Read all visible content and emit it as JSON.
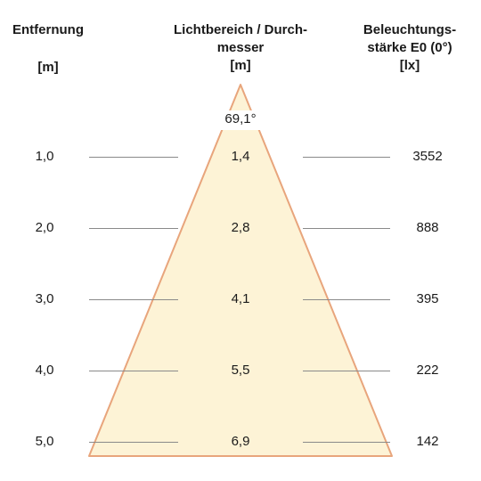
{
  "header": {
    "distance": {
      "title": "Entfernung",
      "unit": "[m]"
    },
    "diameter": {
      "title_line1": "Lichtbereich / Durch-",
      "title_line2": "messer",
      "unit": "[m]"
    },
    "illuminance": {
      "title_line1": "Beleuchtungs-",
      "title_line2": "stärke E0 (0°)",
      "unit": "[lx]"
    }
  },
  "beam_angle": "69,1°",
  "rows": [
    {
      "distance": "1,0",
      "diameter": "1,4",
      "illuminance": "3552"
    },
    {
      "distance": "2,0",
      "diameter": "2,8",
      "illuminance": "888"
    },
    {
      "distance": "3,0",
      "diameter": "4,1",
      "illuminance": "395"
    },
    {
      "distance": "4,0",
      "diameter": "5,5",
      "illuminance": "222"
    },
    {
      "distance": "5,0",
      "diameter": "6,9",
      "illuminance": "142"
    }
  ],
  "colors": {
    "cone_fill": "#fdf3d6",
    "cone_edge": "#e8a57c",
    "guide_line": "#8a8a8a",
    "text": "#1a1a1a"
  }
}
